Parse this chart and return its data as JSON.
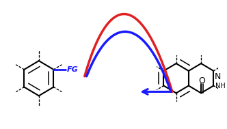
{
  "background_color": "#ffffff",
  "curve_red_color": "#e02020",
  "curve_blue_color": "#1a1aff",
  "arrow_color": "#1a1aff",
  "bond_color": "#000000",
  "fg_color": "#1a1aff",
  "fg_text": "FG",
  "nh_text": "NH",
  "n_text": "N",
  "o_text": "O",
  "curve_lw": 2.5,
  "bond_lw": 1.5,
  "dashed_lw": 1.0
}
